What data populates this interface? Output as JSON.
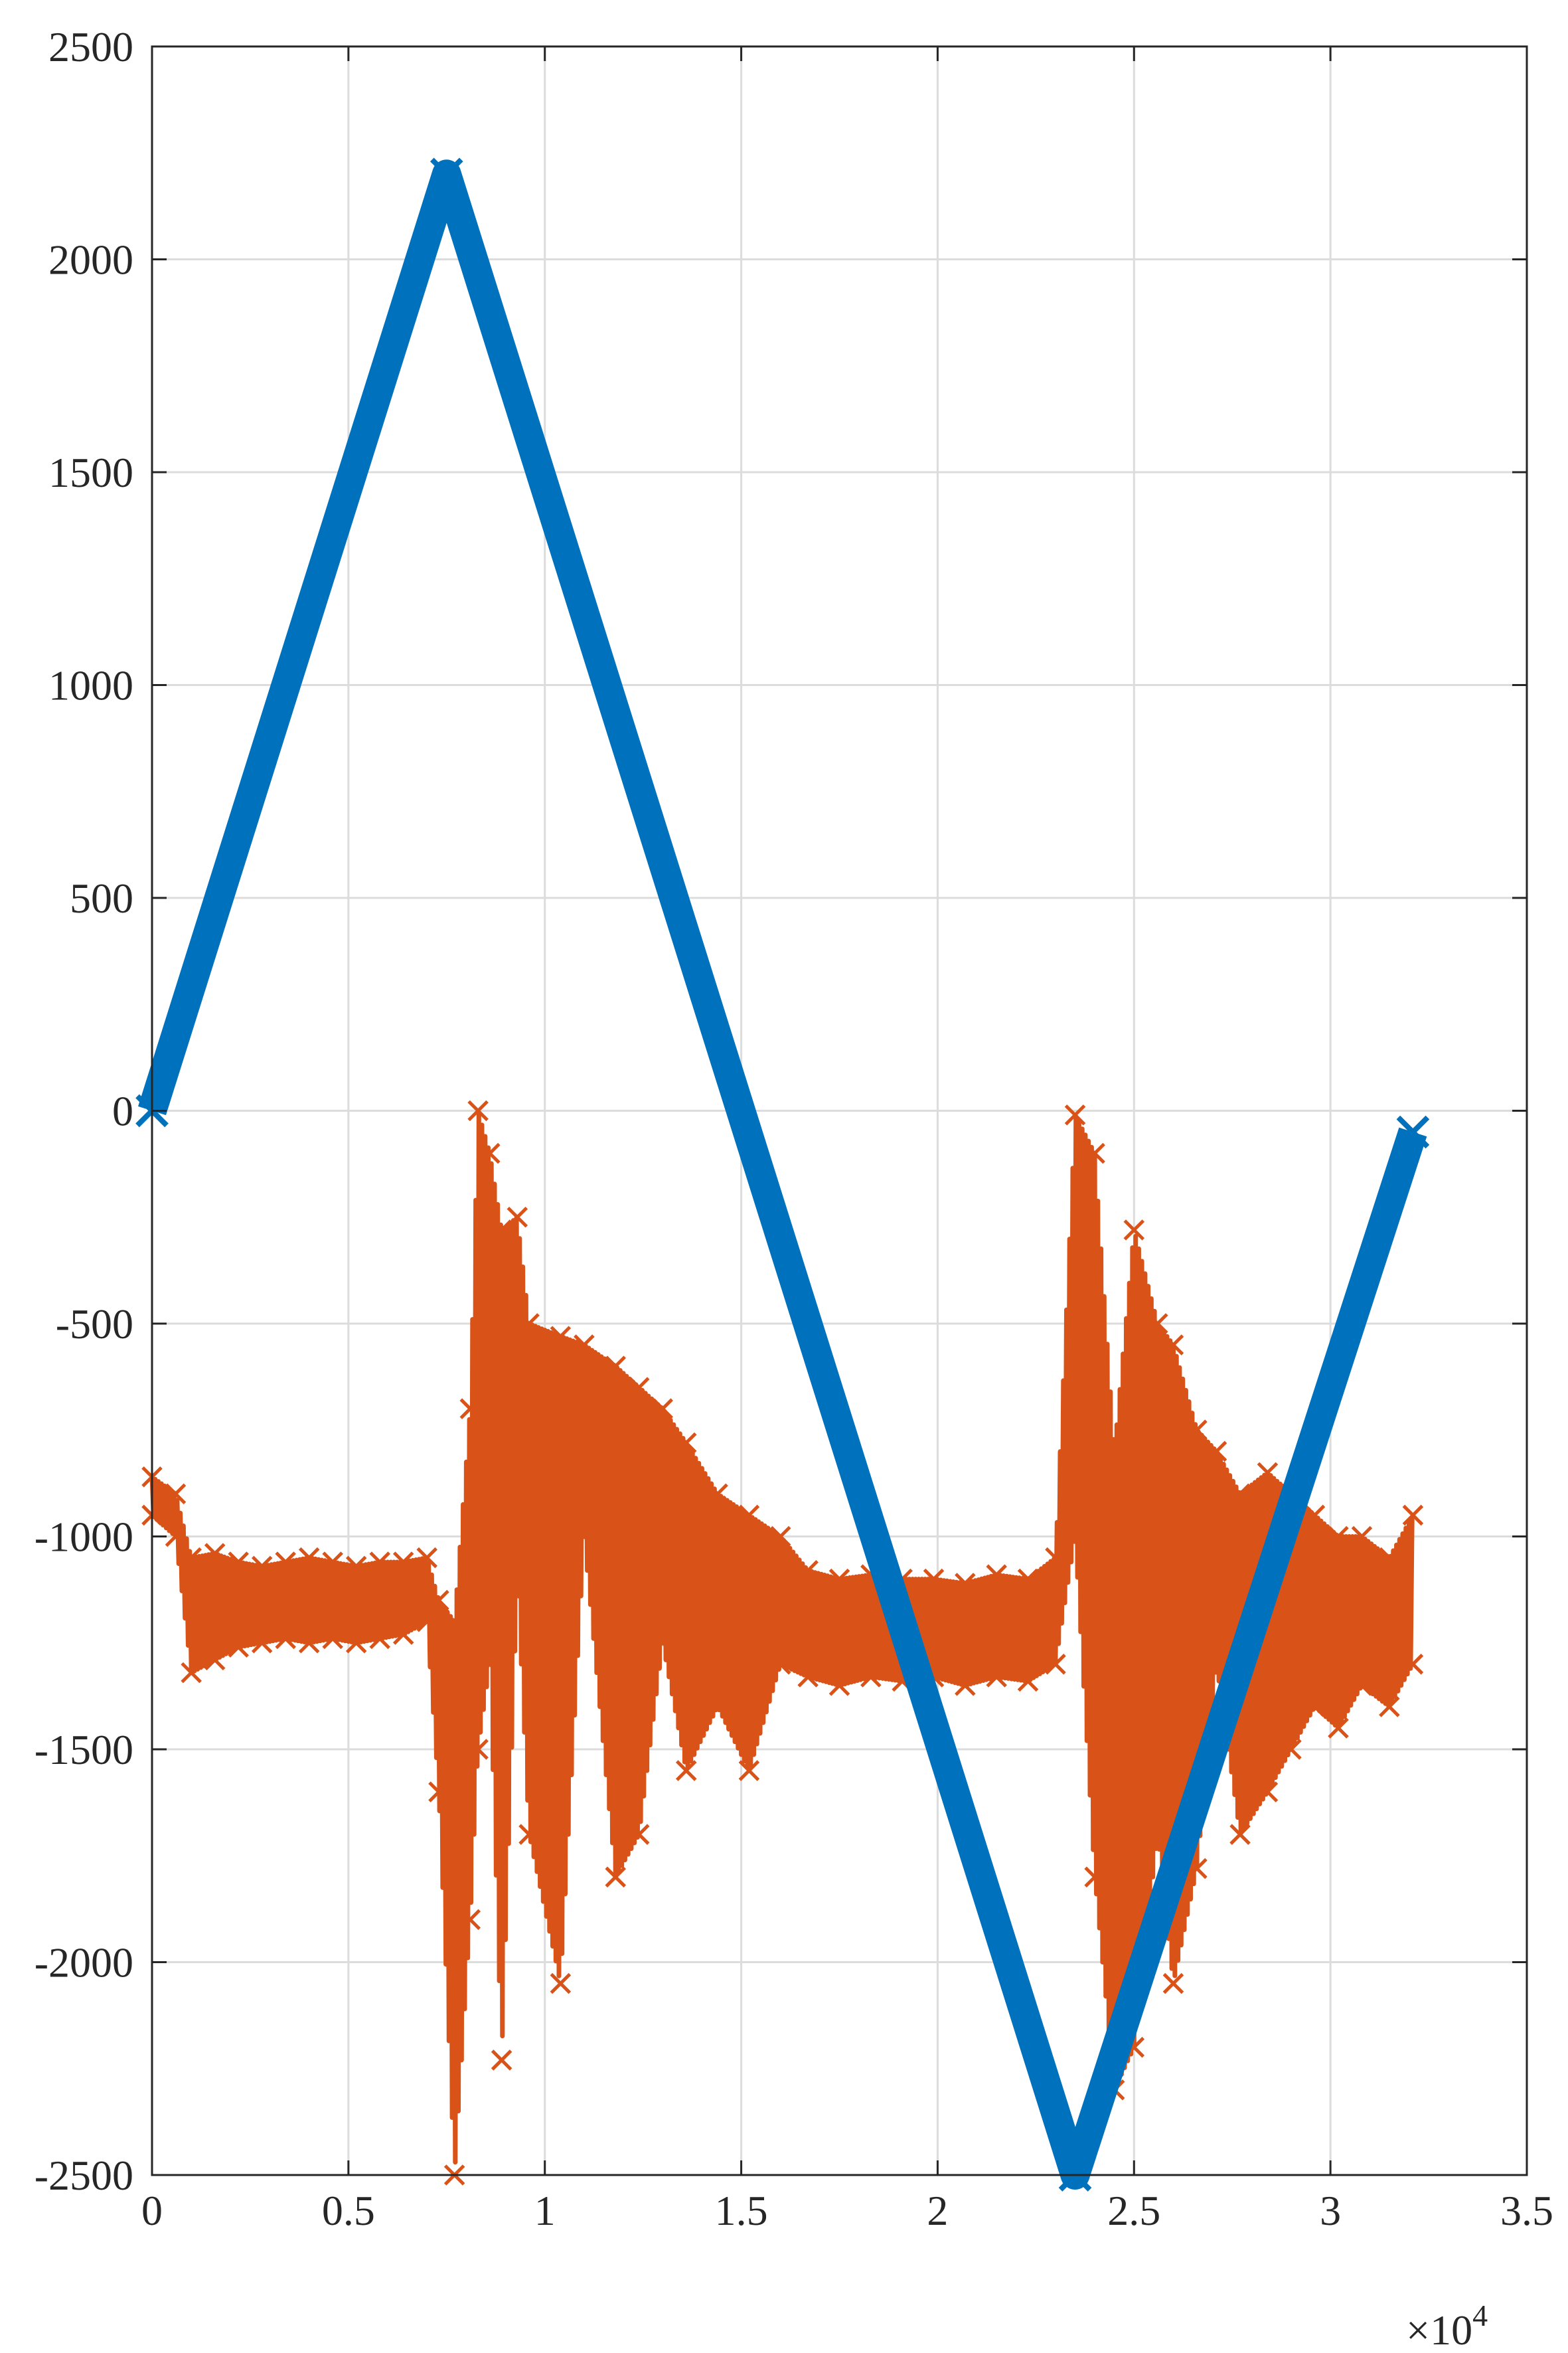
{
  "chart_data": {
    "type": "line",
    "title": "",
    "xlabel": "",
    "ylabel": "",
    "xlim": [
      0,
      35000
    ],
    "ylim": [
      -2500,
      2500
    ],
    "grid": true,
    "x_exponent_label": "×10",
    "x_exponent_power": "4",
    "x_tick_values": [
      0,
      5000,
      10000,
      15000,
      20000,
      25000,
      30000,
      35000
    ],
    "x_tick_labels": [
      "0",
      "0.5",
      "1",
      "1.5",
      "2",
      "2.5",
      "3",
      "3.5"
    ],
    "y_tick_values": [
      -2500,
      -2000,
      -1500,
      -1000,
      -500,
      0,
      500,
      1000,
      1500,
      2000,
      2500
    ],
    "y_tick_labels": [
      "-2500",
      "-2000",
      "-1500",
      "-1000",
      "-500",
      "0",
      "500",
      "1000",
      "1500",
      "2000",
      "2500"
    ],
    "colors": {
      "series1": "#0072BD",
      "series2": "#D95319",
      "grid": "#dcdcdc",
      "axis": "#262626"
    },
    "series": [
      {
        "marker": "x",
        "x": [
          0,
          7500,
          23500,
          32100
        ],
        "y": [
          0,
          2200,
          -2500,
          -50
        ]
      },
      {
        "marker": "x",
        "envelope": [
          [
            0,
            -950,
            -860
          ],
          [
            600,
            -1000,
            -900
          ],
          [
            1000,
            -1320,
            -1050
          ],
          [
            1600,
            -1290,
            -1040
          ],
          [
            2200,
            -1260,
            -1060
          ],
          [
            2800,
            -1250,
            -1070
          ],
          [
            3400,
            -1240,
            -1060
          ],
          [
            4000,
            -1250,
            -1050
          ],
          [
            4600,
            -1240,
            -1060
          ],
          [
            5200,
            -1250,
            -1070
          ],
          [
            5800,
            -1240,
            -1060
          ],
          [
            6400,
            -1230,
            -1060
          ],
          [
            7000,
            -1200,
            -1050
          ],
          [
            7300,
            -1600,
            -1150
          ],
          [
            7700,
            -2500,
            -1200
          ],
          [
            8100,
            -1900,
            -700
          ],
          [
            8300,
            -1500,
            0
          ],
          [
            8600,
            -1300,
            -100
          ],
          [
            8900,
            -2230,
            -280
          ],
          [
            9300,
            -1100,
            -250
          ],
          [
            9600,
            -1700,
            -500
          ],
          [
            10400,
            -2050,
            -530
          ],
          [
            11000,
            -1000,
            -550
          ],
          [
            11800,
            -1800,
            -600
          ],
          [
            12400,
            -1700,
            -650
          ],
          [
            13000,
            -1250,
            -700
          ],
          [
            13600,
            -1550,
            -780
          ],
          [
            14400,
            -1400,
            -900
          ],
          [
            15200,
            -1550,
            -950
          ],
          [
            16000,
            -1300,
            -1000
          ],
          [
            16700,
            -1330,
            -1080
          ],
          [
            17500,
            -1350,
            -1100
          ],
          [
            18300,
            -1330,
            -1090
          ],
          [
            19100,
            -1340,
            -1100
          ],
          [
            19900,
            -1330,
            -1100
          ],
          [
            20700,
            -1350,
            -1110
          ],
          [
            21500,
            -1330,
            -1090
          ],
          [
            22300,
            -1340,
            -1100
          ],
          [
            23000,
            -1300,
            -1050
          ],
          [
            23500,
            -1000,
            -10
          ],
          [
            24000,
            -1800,
            -100
          ],
          [
            24500,
            -2300,
            -800
          ],
          [
            25000,
            -2200,
            -280
          ],
          [
            25600,
            -1700,
            -500
          ],
          [
            26000,
            -2050,
            -550
          ],
          [
            26600,
            -1780,
            -750
          ],
          [
            27100,
            -1300,
            -800
          ],
          [
            27700,
            -1700,
            -900
          ],
          [
            28400,
            -1600,
            -850
          ],
          [
            29000,
            -1500,
            -900
          ],
          [
            29600,
            -1400,
            -950
          ],
          [
            30200,
            -1450,
            -1000
          ],
          [
            30800,
            -1350,
            -1000
          ],
          [
            31500,
            -1400,
            -1050
          ],
          [
            32100,
            -1300,
            -950
          ]
        ]
      }
    ]
  }
}
